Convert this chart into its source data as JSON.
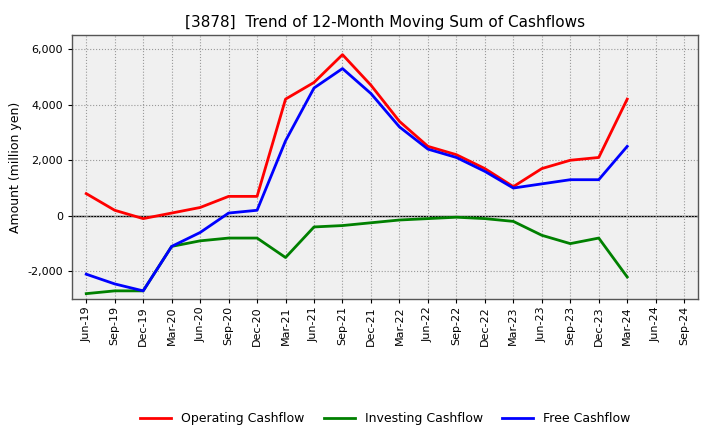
{
  "title": "[3878]  Trend of 12-Month Moving Sum of Cashflows",
  "ylabel": "Amount (million yen)",
  "xlabels": [
    "Jun-19",
    "Sep-19",
    "Dec-19",
    "Mar-20",
    "Jun-20",
    "Sep-20",
    "Dec-20",
    "Mar-21",
    "Jun-21",
    "Sep-21",
    "Dec-21",
    "Mar-22",
    "Jun-22",
    "Sep-22",
    "Dec-22",
    "Mar-23",
    "Jun-23",
    "Sep-23",
    "Dec-23",
    "Mar-24",
    "Jun-24",
    "Sep-24"
  ],
  "operating": [
    800,
    200,
    -100,
    100,
    300,
    700,
    700,
    4200,
    4800,
    5800,
    4700,
    3400,
    2500,
    2200,
    1700,
    1050,
    1700,
    2000,
    2100,
    4200,
    null,
    null
  ],
  "investing": [
    -2800,
    -2700,
    -2700,
    -1100,
    -900,
    -800,
    -800,
    -1500,
    -400,
    -350,
    -250,
    -150,
    -100,
    -50,
    -100,
    -200,
    -700,
    -1000,
    -800,
    -2200,
    null,
    null
  ],
  "free": [
    -2100,
    -2450,
    -2700,
    -1100,
    -600,
    100,
    200,
    2700,
    4600,
    5300,
    4400,
    3200,
    2400,
    2100,
    1600,
    1000,
    1150,
    1300,
    1300,
    2500,
    null,
    null
  ],
  "ylim": [
    -3000,
    6500
  ],
  "yticks": [
    -2000,
    0,
    2000,
    4000,
    6000
  ],
  "operating_color": "#ff0000",
  "investing_color": "#008000",
  "free_color": "#0000ff",
  "line_width": 2.0,
  "plot_bg_color": "#f0f0f0",
  "bg_color": "#ffffff",
  "grid_color": "#999999",
  "title_fontsize": 11,
  "axis_fontsize": 9,
  "tick_fontsize": 8
}
